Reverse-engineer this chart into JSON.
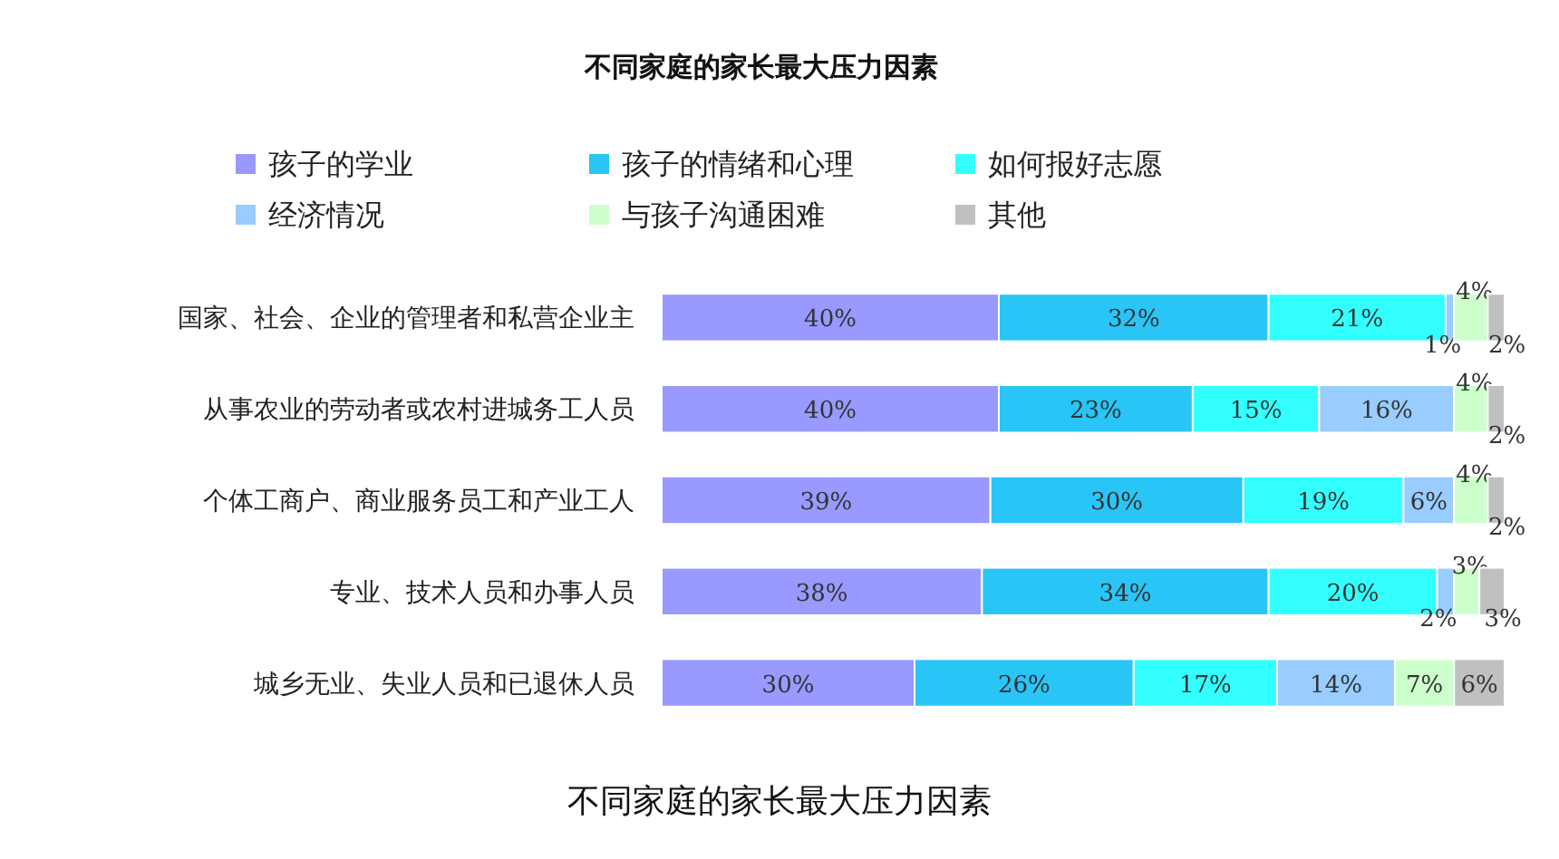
{
  "chart_data": {
    "type": "bar",
    "orientation": "horizontal",
    "stacked": true,
    "title": "不同家庭的家长最大压力因素",
    "annotations": [
      "不同家庭的家长最大压力因素"
    ],
    "legend": "top",
    "categories": [
      "国家、社会、企业的管理者和私营企业主",
      "从事农业的劳动者或农村进城务工人员",
      "个体工商户、商业服务员工和产业工人",
      "专业、技术人员和办事人员",
      "城乡无业、失业人员和已退休人员"
    ],
    "series": [
      {
        "name": "孩子的学业",
        "color": "#9999ff",
        "values": [
          40,
          40,
          39,
          38,
          30
        ],
        "value_labels": [
          "40%",
          "40%",
          "39%",
          "38%",
          "30%"
        ]
      },
      {
        "name": "孩子的情绪和心理",
        "color": "#29c5f6",
        "values": [
          32,
          23,
          30,
          34,
          26
        ],
        "value_labels": [
          "32%",
          "23%",
          "30%",
          "34%",
          "26%"
        ]
      },
      {
        "name": "如何报好志愿",
        "color": "#33ffff",
        "values": [
          21,
          15,
          19,
          20,
          17
        ],
        "value_labels": [
          "21%",
          "15%",
          "19%",
          "20%",
          "17%"
        ]
      },
      {
        "name": "经济情况",
        "color": "#99ccff",
        "values": [
          1,
          16,
          6,
          2,
          14
        ],
        "value_labels": [
          "1%",
          "16%",
          "6%",
          "2%",
          "14%"
        ]
      },
      {
        "name": "与孩子沟通困难",
        "color": "#ccffcc",
        "values": [
          4,
          4,
          4,
          3,
          7
        ],
        "value_labels": [
          "4%",
          "4%",
          "4%",
          "3%",
          "7%"
        ]
      },
      {
        "name": "其他",
        "color": "#c0c0c0",
        "values": [
          2,
          2,
          2,
          3,
          6
        ],
        "value_labels": [
          "2%",
          "2%",
          "2%",
          "3%",
          "6%"
        ]
      }
    ]
  }
}
